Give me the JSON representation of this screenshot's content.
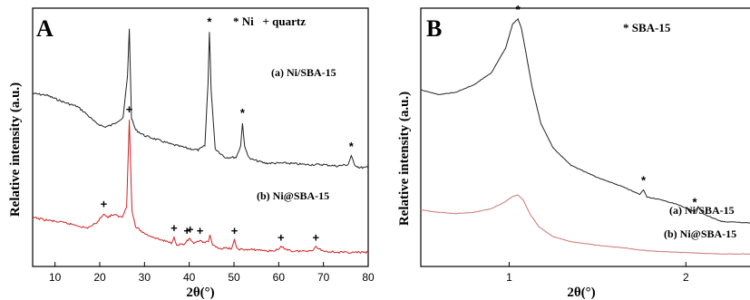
{
  "chart_data": [
    {
      "type": "line",
      "panel": "A",
      "xlabel": "2θ(°)",
      "ylabel": "Relative intensity (a.u.)",
      "xlim": [
        5,
        80
      ],
      "xticks": [
        10,
        20,
        30,
        40,
        50,
        60,
        70,
        80
      ],
      "legend_text": "* Ni   + quartz",
      "series": [
        {
          "name": "(a) Ni/SBA-15",
          "color": "#222222",
          "x": [
            5,
            8,
            12,
            15,
            17,
            19,
            21,
            22.5,
            24,
            25.2,
            26.2,
            26.6,
            27.1,
            28,
            30,
            33,
            36,
            40,
            42,
            43.5,
            44.2,
            44.5,
            44.9,
            45.8,
            48,
            50.5,
            51.5,
            51.9,
            52.4,
            53.5,
            57,
            62,
            66,
            70,
            73,
            75.5,
            76.2,
            76.9,
            78,
            80
          ],
          "values": [
            0.53,
            0.52,
            0.47,
            0.44,
            0.39,
            0.33,
            0.3,
            0.31,
            0.34,
            0.36,
            0.65,
            0.98,
            0.36,
            0.28,
            0.24,
            0.21,
            0.18,
            0.15,
            0.14,
            0.17,
            0.6,
            0.96,
            0.55,
            0.15,
            0.09,
            0.09,
            0.17,
            0.33,
            0.16,
            0.08,
            0.05,
            0.05,
            0.04,
            0.04,
            0.03,
            0.04,
            0.1,
            0.04,
            0.02,
            0.02
          ]
        },
        {
          "name": "(b) Ni@SBA-15",
          "color": "#cc2222",
          "x": [
            5,
            8,
            12,
            15,
            17,
            19,
            20.3,
            20.9,
            21.6,
            23,
            25,
            26.0,
            26.6,
            27.2,
            28,
            30,
            33,
            36,
            36.6,
            37.2,
            39,
            39.5,
            40.2,
            41,
            42.4,
            43,
            44.3,
            44.6,
            45.2,
            47,
            49.5,
            50.1,
            50.6,
            52,
            55,
            58,
            60.0,
            60.5,
            63,
            66,
            67.7,
            68.3,
            70,
            74,
            77,
            80
          ],
          "values": [
            0.27,
            0.25,
            0.23,
            0.21,
            0.19,
            0.22,
            0.27,
            0.3,
            0.27,
            0.29,
            0.27,
            0.35,
            1.0,
            0.32,
            0.2,
            0.15,
            0.11,
            0.08,
            0.12,
            0.07,
            0.07,
            0.1,
            0.11,
            0.07,
            0.1,
            0.08,
            0.09,
            0.14,
            0.06,
            0.04,
            0.04,
            0.1,
            0.04,
            0.03,
            0.03,
            0.02,
            0.03,
            0.05,
            0.02,
            0.02,
            0.03,
            0.05,
            0.02,
            0.01,
            0.01,
            0.01
          ]
        }
      ],
      "annotations": [
        {
          "text": "*",
          "x": 44.5,
          "series": 0
        },
        {
          "text": "*",
          "x": 51.9,
          "series": 0
        },
        {
          "text": "*",
          "x": 76.2,
          "series": 0
        },
        {
          "text": "+",
          "x": 26.6,
          "series": 1
        },
        {
          "text": "+",
          "x": 20.9,
          "series": 1
        },
        {
          "text": "+",
          "x": 36.6,
          "series": 1
        },
        {
          "text": "+",
          "x": 39.5,
          "series": 1
        },
        {
          "text": "+",
          "x": 40.2,
          "series": 1
        },
        {
          "text": "+",
          "x": 42.4,
          "series": 1
        },
        {
          "text": "+",
          "x": 50.1,
          "series": 1
        },
        {
          "text": "+",
          "x": 60.5,
          "series": 1
        },
        {
          "text": "+",
          "x": 68.3,
          "series": 1
        }
      ]
    },
    {
      "type": "line",
      "panel": "B",
      "xlabel": "2θ(°)",
      "ylabel": "Relative intensity (a.u.)",
      "xlim": [
        0.5,
        2.45
      ],
      "xticks": [
        1,
        2
      ],
      "legend_text": "* SBA-15",
      "series": [
        {
          "name": "(a) Ni/SBA-15",
          "color": "#222222",
          "x": [
            0.5,
            0.6,
            0.7,
            0.8,
            0.9,
            0.98,
            1.02,
            1.05,
            1.07,
            1.1,
            1.13,
            1.18,
            1.25,
            1.35,
            1.5,
            1.65,
            1.74,
            1.76,
            1.78,
            1.85,
            1.95,
            2.05,
            2.07,
            2.1,
            2.2,
            2.45
          ],
          "values": [
            0.71,
            0.69,
            0.7,
            0.73,
            0.78,
            0.88,
            0.98,
            1.0,
            0.96,
            0.84,
            0.72,
            0.57,
            0.47,
            0.4,
            0.35,
            0.31,
            0.28,
            0.3,
            0.27,
            0.26,
            0.24,
            0.21,
            0.23,
            0.2,
            0.17,
            0.16
          ]
        },
        {
          "name": "(b) Ni@SBA-15",
          "color": "#cc7777",
          "x": [
            0.5,
            0.6,
            0.7,
            0.8,
            0.9,
            0.97,
            1.02,
            1.05,
            1.08,
            1.12,
            1.17,
            1.25,
            1.35,
            1.5,
            1.65,
            1.75,
            1.85,
            2.0,
            2.2,
            2.45
          ],
          "values": [
            0.47,
            0.45,
            0.44,
            0.45,
            0.48,
            0.53,
            0.58,
            0.59,
            0.55,
            0.43,
            0.33,
            0.25,
            0.21,
            0.18,
            0.16,
            0.14,
            0.13,
            0.12,
            0.11,
            0.11
          ]
        }
      ],
      "annotations": [
        {
          "text": "*",
          "x": 1.05,
          "series": 0
        },
        {
          "text": "*",
          "x": 1.76,
          "series": 0
        },
        {
          "text": "*",
          "x": 2.05,
          "series": 0
        }
      ]
    }
  ]
}
